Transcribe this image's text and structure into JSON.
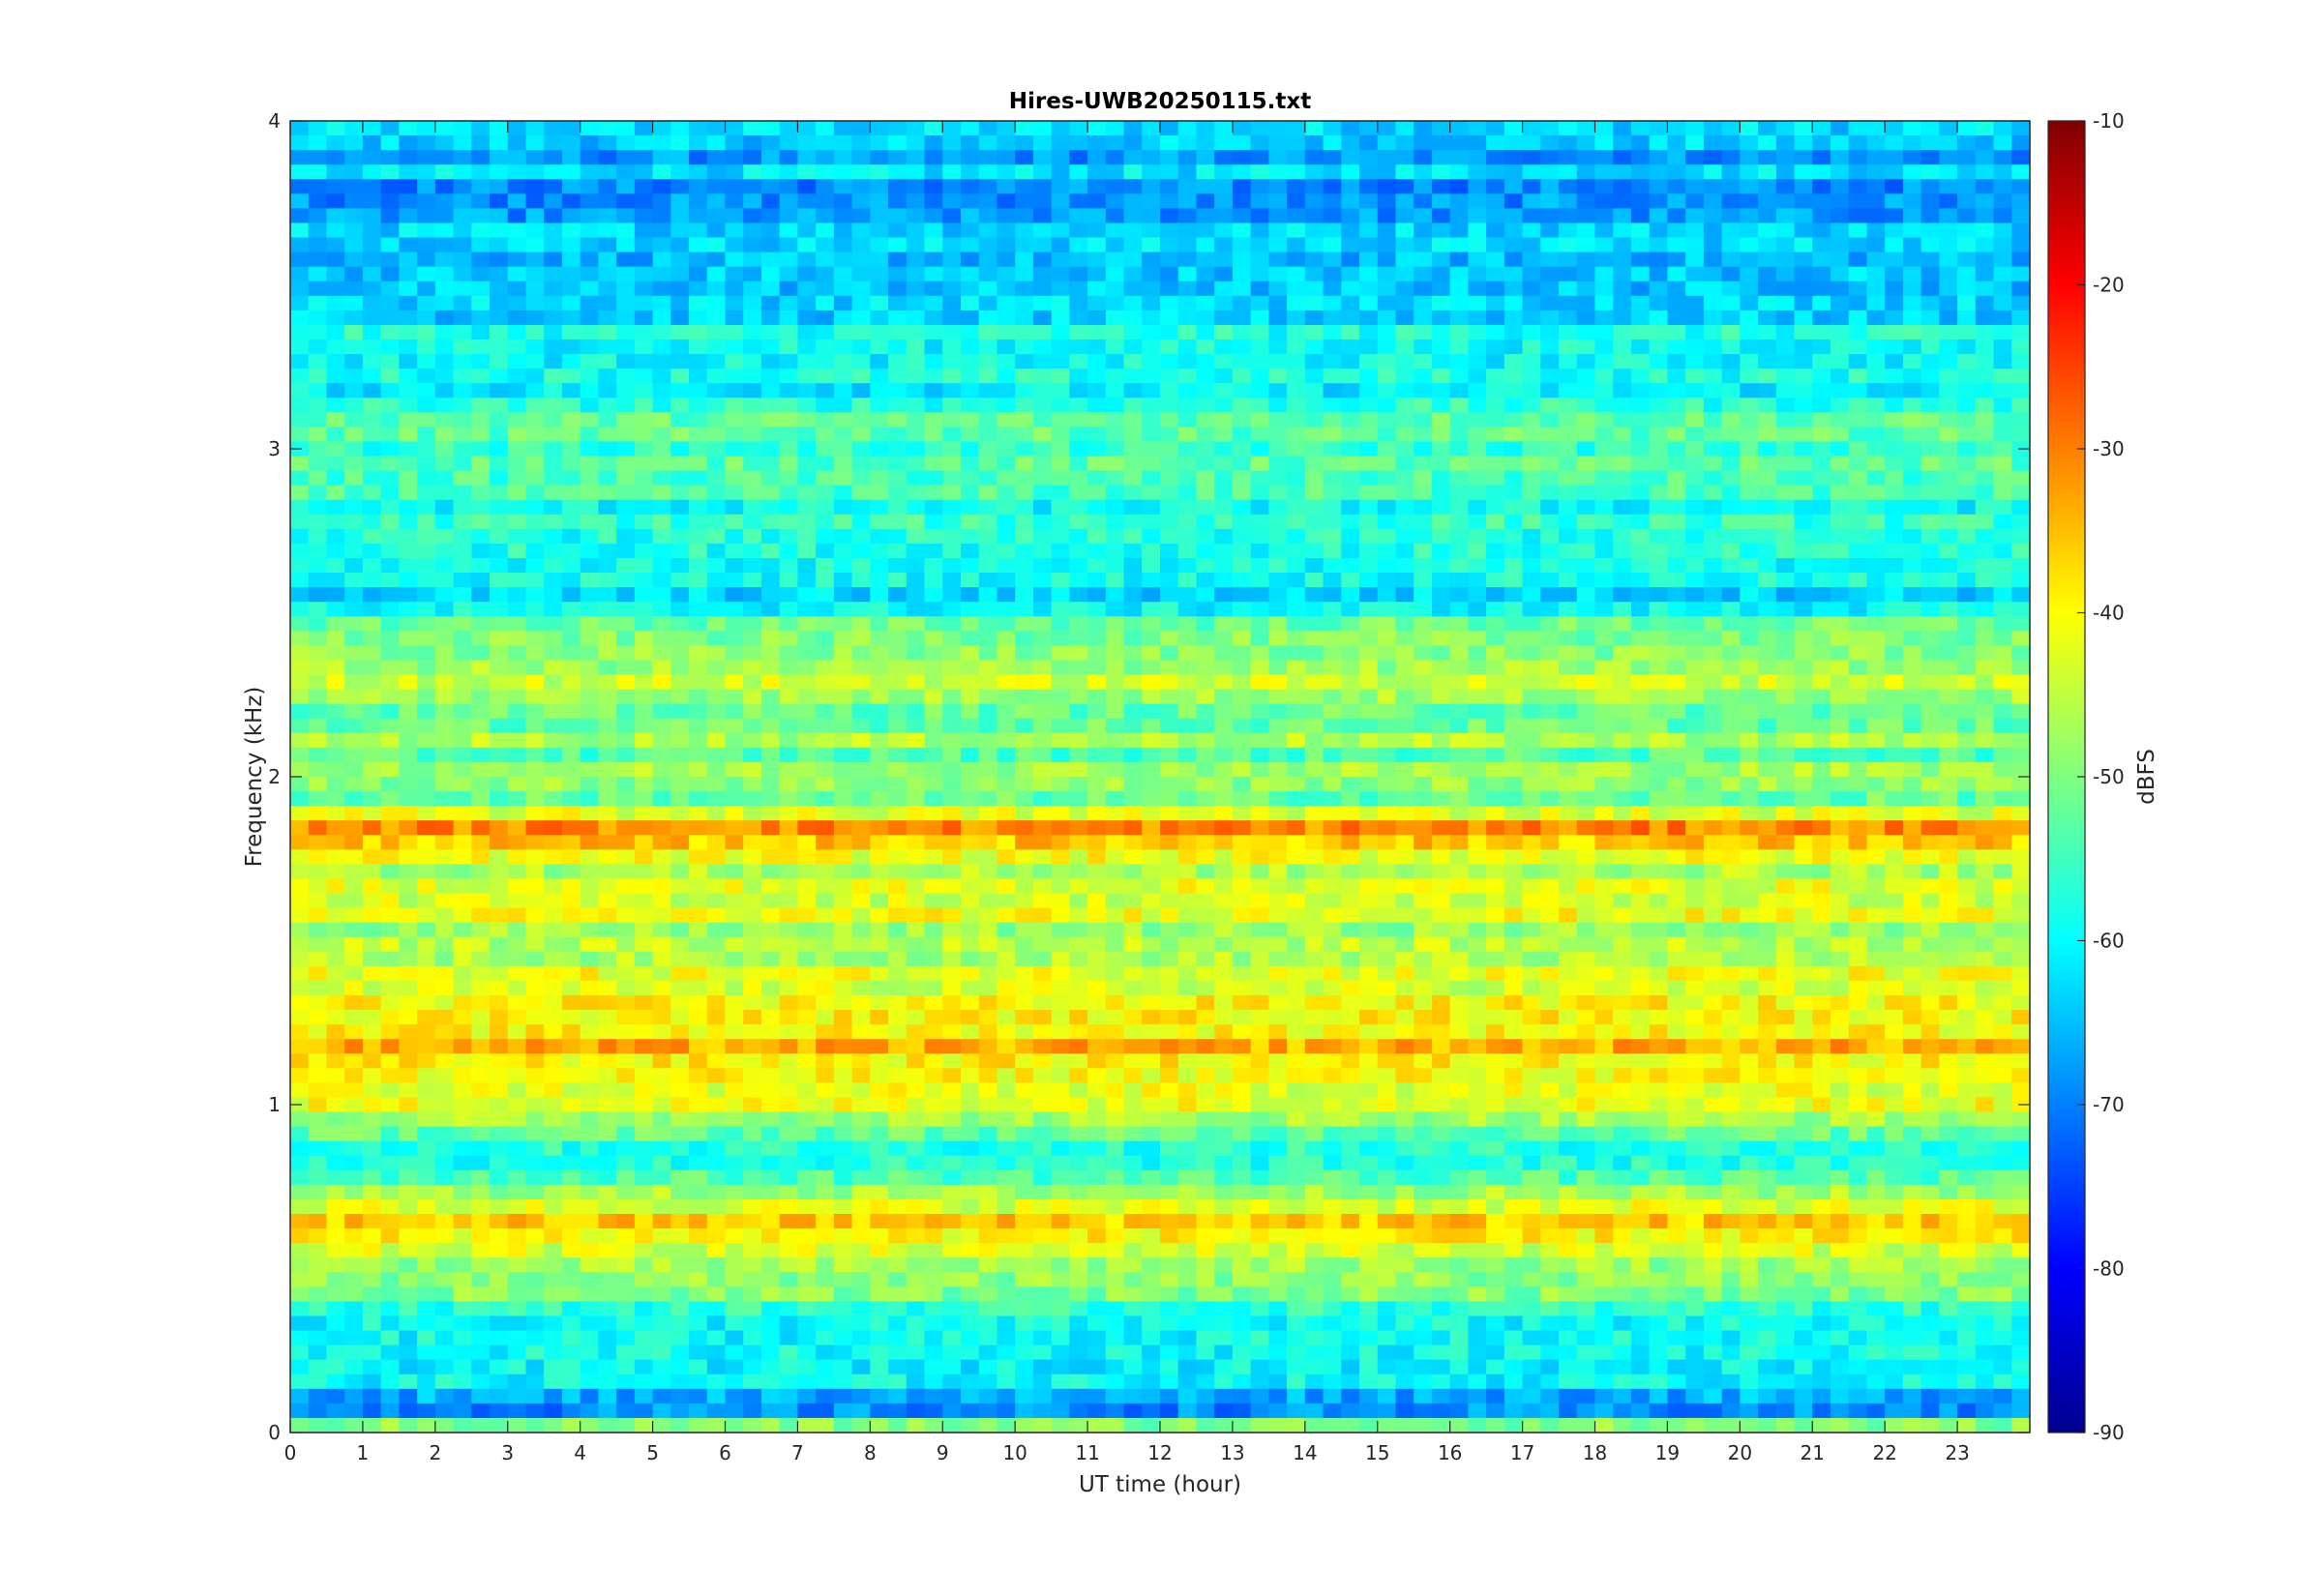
{
  "chart_data": {
    "type": "heatmap",
    "title": "Hires-UWB20250115.txt",
    "xlabel": "UT time (hour)",
    "ylabel": "Frequency (kHz)",
    "xlim": [
      0,
      24
    ],
    "ylim": [
      0,
      4
    ],
    "x_ticks": [
      "0",
      "1",
      "2",
      "3",
      "4",
      "5",
      "6",
      "7",
      "8",
      "9",
      "10",
      "11",
      "12",
      "13",
      "14",
      "15",
      "16",
      "17",
      "18",
      "19",
      "20",
      "21",
      "22",
      "23"
    ],
    "y_ticks": [
      "0",
      "1",
      "2",
      "3",
      "4"
    ],
    "colorbar": {
      "label": "dBFS",
      "colormap": "jet",
      "range": [
        -90,
        -10
      ],
      "ticks": [
        "-10",
        "-20",
        "-30",
        "-40",
        "-50",
        "-60",
        "-70",
        "-80",
        "-90"
      ]
    },
    "bands_khz_dbfs": [
      [
        0.02,
        -52
      ],
      [
        0.09,
        -72
      ],
      [
        0.15,
        -58
      ],
      [
        0.25,
        -62
      ],
      [
        0.35,
        -56
      ],
      [
        0.45,
        -52
      ],
      [
        0.55,
        -44
      ],
      [
        0.65,
        -38
      ],
      [
        0.75,
        -52
      ],
      [
        0.85,
        -56
      ],
      [
        0.95,
        -46
      ],
      [
        1.05,
        -40
      ],
      [
        1.15,
        -36
      ],
      [
        1.25,
        -38
      ],
      [
        1.35,
        -44
      ],
      [
        1.45,
        -46
      ],
      [
        1.55,
        -44
      ],
      [
        1.65,
        -46
      ],
      [
        1.75,
        -42
      ],
      [
        1.85,
        -33
      ],
      [
        1.95,
        -52
      ],
      [
        2.15,
        -50
      ],
      [
        2.35,
        -46
      ],
      [
        2.45,
        -50
      ],
      [
        2.55,
        -60
      ],
      [
        2.75,
        -58
      ],
      [
        2.95,
        -52
      ],
      [
        3.05,
        -56
      ],
      [
        3.25,
        -58
      ],
      [
        3.55,
        -62
      ],
      [
        3.85,
        -66
      ],
      [
        3.95,
        -64
      ]
    ]
  }
}
